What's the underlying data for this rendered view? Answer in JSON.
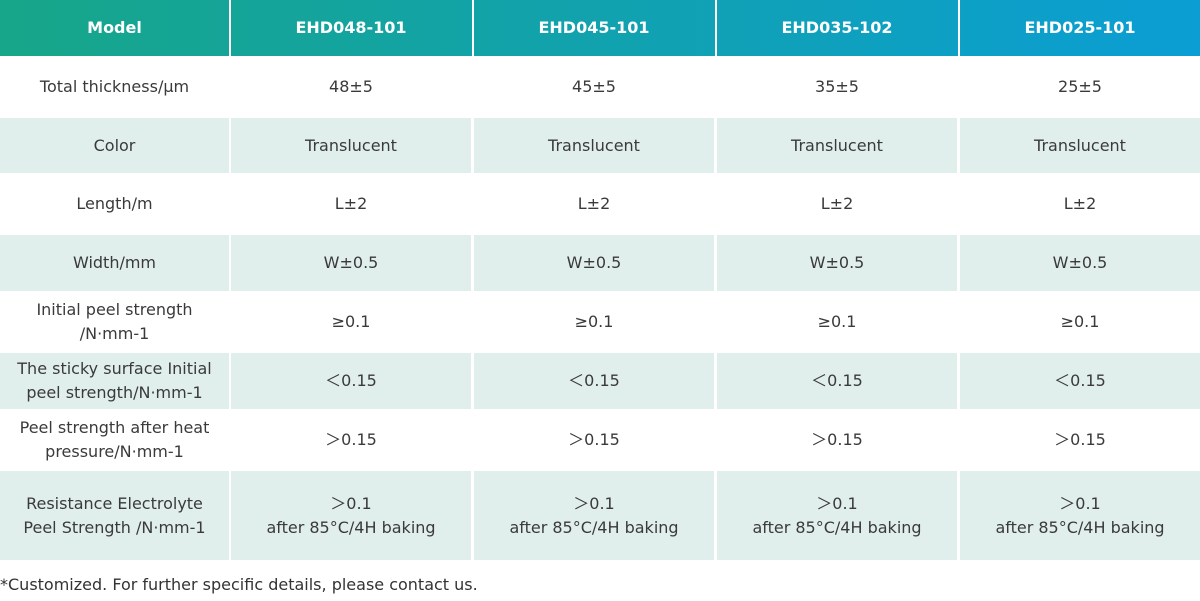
{
  "table": {
    "header": [
      "Model",
      "EHD048-101",
      "EHD045-101",
      "EHD035-102",
      "EHD025-101"
    ],
    "rows": [
      [
        "Total thickness/μm",
        "48±5",
        "45±5",
        "35±5",
        "25±5"
      ],
      [
        "Color",
        "Translucent",
        "Translucent",
        "Translucent",
        "Translucent"
      ],
      [
        "Length/m",
        "L±2",
        "L±2",
        "L±2",
        "L±2"
      ],
      [
        "Width/mm",
        "W±0.5",
        "W±0.5",
        "W±0.5",
        "W±0.5"
      ],
      [
        [
          "Initial peel strength",
          "/N·mm-1"
        ],
        "≥0.1",
        "≥0.1",
        "≥0.1",
        "≥0.1"
      ],
      [
        [
          "The sticky surface Initial",
          "peel strength/N·mm-1"
        ],
        "＜0.15",
        "＜0.15",
        "＜0.15",
        "＜0.15"
      ],
      [
        [
          "Peel strength after heat",
          "pressure/N·mm-1"
        ],
        "＞0.15",
        "＞0.15",
        "＞0.15",
        "＞0.15"
      ],
      [
        [
          "Resistance Electrolyte",
          "Peel Strength /N·mm-1"
        ],
        [
          "＞0.1",
          "after 85°C/4H baking"
        ],
        [
          "＞0.1",
          "after 85°C/4H baking"
        ],
        [
          "＞0.1",
          "after 85°C/4H baking"
        ],
        [
          "＞0.1",
          "after 85°C/4H baking"
        ]
      ]
    ]
  },
  "footnote": "*Customized. For further specific details, please contact us."
}
